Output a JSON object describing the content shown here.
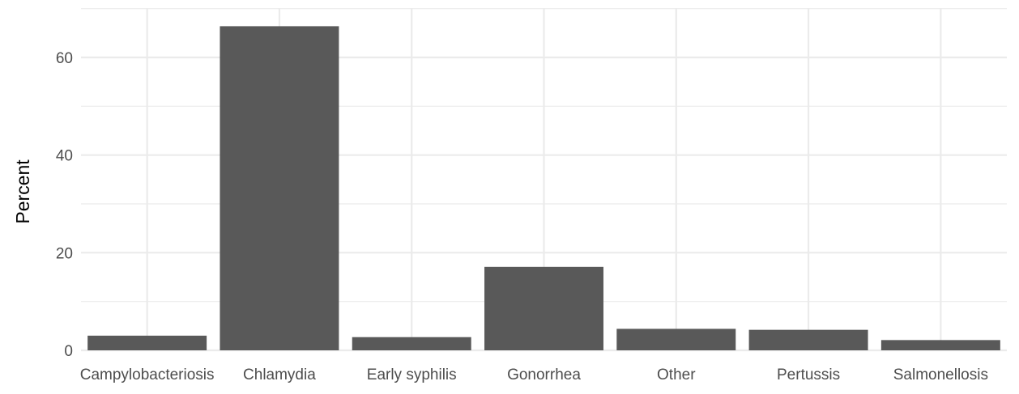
{
  "chart_data": {
    "type": "bar",
    "title": "",
    "xlabel": "",
    "ylabel": "Percent",
    "categories": [
      "Campylobacteriosis",
      "Chlamydia",
      "Early syphilis",
      "Gonorrhea",
      "Other",
      "Pertussis",
      "Salmonellosis"
    ],
    "values": [
      3.0,
      66.4,
      2.7,
      17.1,
      4.4,
      4.2,
      2.1
    ],
    "ylim": [
      0,
      70
    ],
    "yticks": [
      0,
      20,
      40,
      60
    ],
    "grid": true,
    "legend": "none",
    "colors": {
      "bar": "#595959",
      "grid": "#ebebeb",
      "background": "#ffffff"
    }
  }
}
